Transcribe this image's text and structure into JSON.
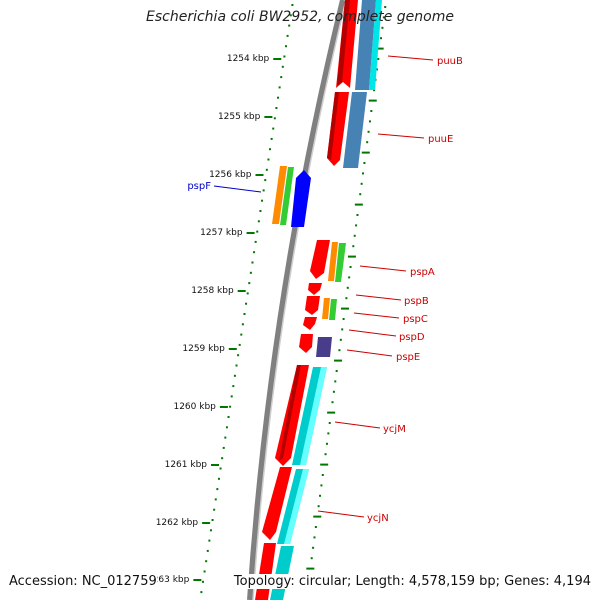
{
  "header": {
    "title": "Escherichia coli BW2952, complete genome"
  },
  "footer": {
    "accession": "Accession: NC_012759",
    "summary": "Topology: circular; Length: 4,578,159 bp; Genes: 4,194"
  },
  "scale_labels": [
    "1254 kbp",
    "1255 kbp",
    "1256 kbp",
    "1257 kbp",
    "1258 kbp",
    "1259 kbp",
    "1260 kbp",
    "1261 kbp",
    "1262 kbp",
    "1263 kbp"
  ],
  "genes": [
    {
      "name": "puuB",
      "strand": "forward",
      "color": "#cc0000"
    },
    {
      "name": "puuE",
      "strand": "forward",
      "color": "#cc0000"
    },
    {
      "name": "pspF",
      "strand": "reverse",
      "color": "#0000cc"
    },
    {
      "name": "pspA",
      "strand": "forward",
      "color": "#cc0000"
    },
    {
      "name": "pspB",
      "strand": "forward",
      "color": "#cc0000"
    },
    {
      "name": "pspC",
      "strand": "forward",
      "color": "#cc0000"
    },
    {
      "name": "pspD",
      "strand": "forward",
      "color": "#cc0000"
    },
    {
      "name": "pspE",
      "strand": "forward",
      "color": "#cc0000"
    },
    {
      "name": "ycjM",
      "strand": "forward",
      "color": "#cc0000"
    },
    {
      "name": "ycjN",
      "strand": "forward",
      "color": "#cc0000"
    }
  ],
  "colors": {
    "cds_red": "#ff0000",
    "cyan": "#00e5e5",
    "steelblue": "#4682b4",
    "orange": "#ff8c00",
    "green": "#33cc33",
    "blue": "#0000ff",
    "purple": "#483d8b",
    "backbone": "#808080",
    "ticks": "#007700"
  }
}
